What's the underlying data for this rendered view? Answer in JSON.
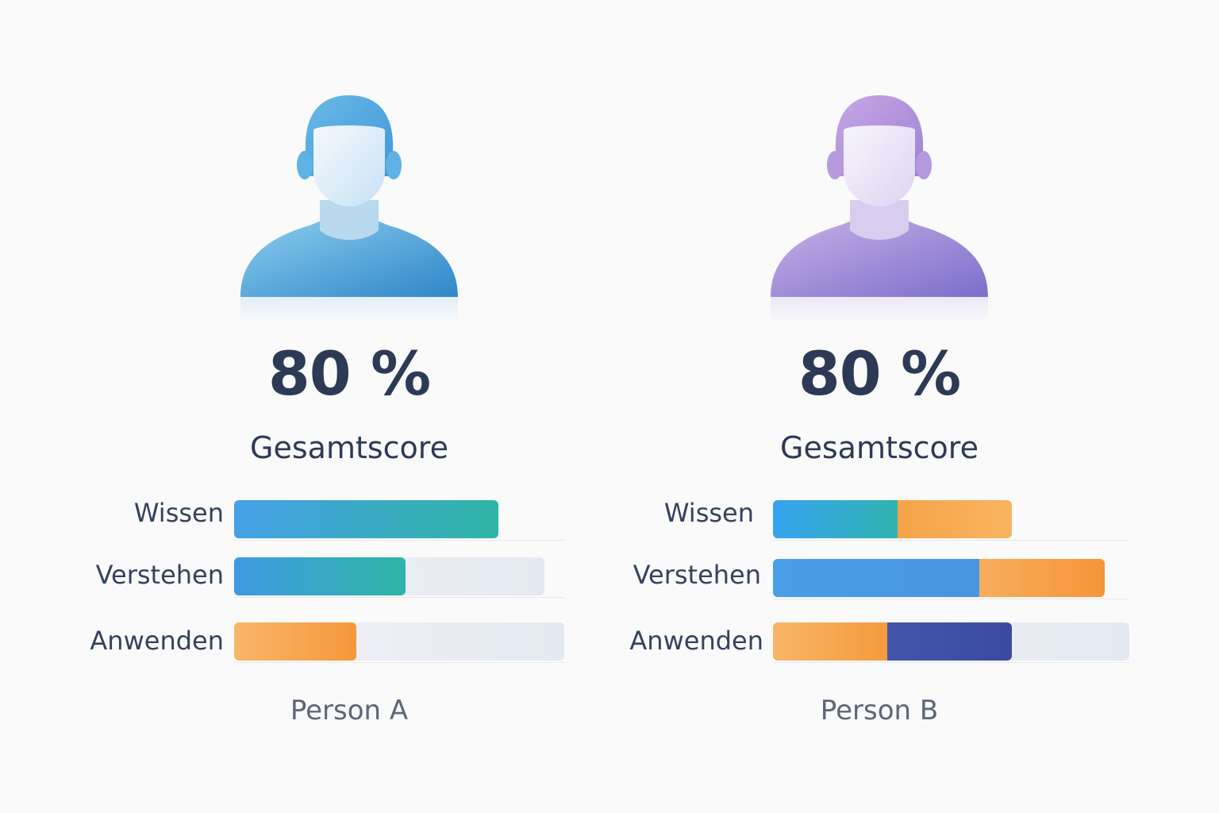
{
  "colors": {
    "text_dark": "#2c3a55",
    "blue": "#3e9ae4",
    "teal": "#2fb5a6",
    "orange": "#f6a348",
    "navy": "#3b4aa0",
    "avatar_a": "#4aa6df",
    "avatar_b": "#9f84d3"
  },
  "icons": {
    "avatar": "person-silhouette-icon"
  },
  "chart_data": {
    "type": "bar",
    "categories": [
      "Wissen",
      "Verstehen",
      "Anwenden"
    ],
    "max": 100,
    "people": [
      {
        "name": "Person A",
        "score": "80 %",
        "score_label": "Gesamtscore",
        "avatar_color": "#4aa6df",
        "bars": [
          {
            "category": "Wissen",
            "track": 80,
            "segments": [
              {
                "value": 80,
                "color_from": "#45a0e6",
                "color_to": "#2fb5a6"
              }
            ]
          },
          {
            "category": "Verstehen",
            "track": 94,
            "segments": [
              {
                "value": 52,
                "color_from": "#3e9ae4",
                "color_to": "#2fb5a6"
              }
            ]
          },
          {
            "category": "Anwenden",
            "track": 100,
            "segments": [
              {
                "value": 37,
                "color_from": "#f8b669",
                "color_to": "#f59739"
              }
            ]
          }
        ]
      },
      {
        "name": "Person B",
        "score": "80 %",
        "score_label": "Gesamtscore",
        "avatar_color": "#9f84d3",
        "bars": [
          {
            "category": "Wissen",
            "track": 67,
            "segments": [
              {
                "value": 35,
                "color_from": "#36a4f0",
                "color_to": "#30b3b0"
              },
              {
                "value": 32,
                "color_from": "#f6a348",
                "color_to": "#f8b55f"
              }
            ]
          },
          {
            "category": "Verstehen",
            "track": 93,
            "segments": [
              {
                "value": 58,
                "color_from": "#4a9ee6",
                "color_to": "#4696df"
              },
              {
                "value": 35,
                "color_from": "#f8ad5c",
                "color_to": "#f59539"
              }
            ]
          },
          {
            "category": "Anwenden",
            "track": 100,
            "segments": [
              {
                "value": 32,
                "color_from": "#f8b669",
                "color_to": "#f59a3c"
              },
              {
                "value": 35,
                "color_from": "#4355aa",
                "color_to": "#3b4aa0"
              }
            ]
          }
        ]
      }
    ]
  }
}
